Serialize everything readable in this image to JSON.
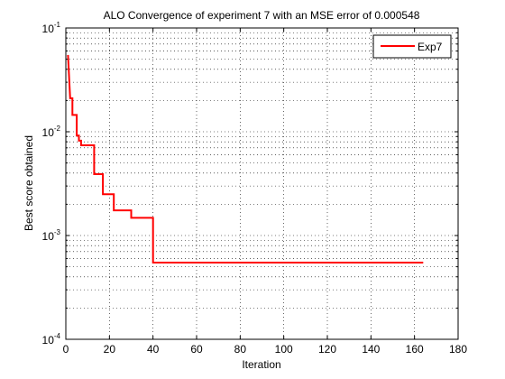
{
  "chart_data": {
    "type": "line",
    "title": "ALO Convergence of experiment 7 with an MSE error of 0.000548",
    "xlabel": "Iteration",
    "ylabel": "Best score obtained",
    "xlim": [
      0,
      180
    ],
    "ylim": [
      0.0001,
      0.1
    ],
    "yscale": "log",
    "grid": true,
    "legend_position": "top-right",
    "x_ticks": [
      "0",
      "20",
      "40",
      "60",
      "80",
      "100",
      "120",
      "140",
      "160",
      "180"
    ],
    "x_tick_values": [
      0,
      20,
      40,
      60,
      80,
      100,
      120,
      140,
      160,
      180
    ],
    "y_ticks": [
      {
        "base": "10",
        "exp": "-4",
        "value": 0.0001
      },
      {
        "base": "10",
        "exp": "-3",
        "value": 0.001
      },
      {
        "base": "10",
        "exp": "-2",
        "value": 0.01
      },
      {
        "base": "10",
        "exp": "-1",
        "value": 0.1
      }
    ],
    "series": [
      {
        "name": "Exp7",
        "color": "#ff0000",
        "x": [
          1,
          2,
          2,
          3,
          3,
          4,
          5,
          5,
          6,
          6,
          7,
          7,
          8,
          13,
          13,
          14,
          17,
          17,
          18,
          22,
          22,
          23,
          26,
          26,
          30,
          30,
          40,
          40,
          164
        ],
        "y": [
          0.055,
          0.021,
          0.021,
          0.021,
          0.0145,
          0.0145,
          0.0145,
          0.0092,
          0.0092,
          0.0082,
          0.0082,
          0.0074,
          0.0074,
          0.0074,
          0.0039,
          0.0039,
          0.0039,
          0.0025,
          0.0025,
          0.0025,
          0.00175,
          0.00175,
          0.00175,
          0.00175,
          0.00175,
          0.00148,
          0.00148,
          0.000548,
          0.000548
        ]
      }
    ]
  }
}
